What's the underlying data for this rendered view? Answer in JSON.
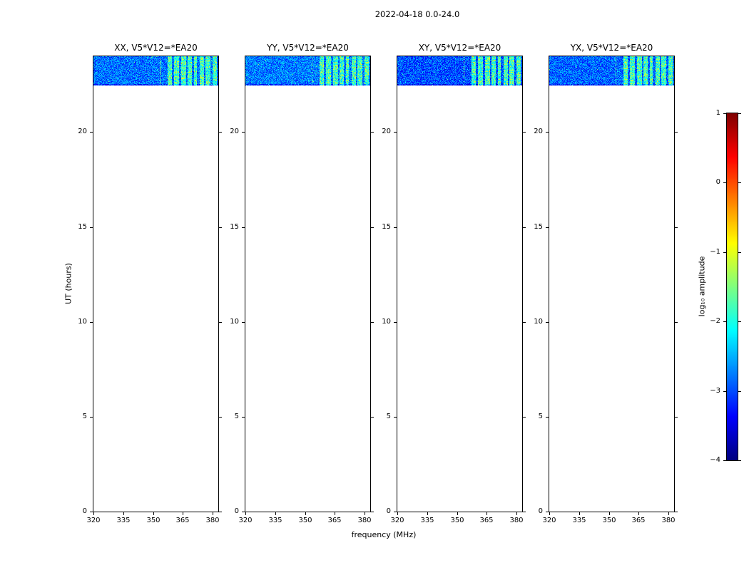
{
  "figure": {
    "title": "2022-04-18 0.0-24.0"
  },
  "chart_data": {
    "type": "heatmap",
    "description": "Four dynamic-spectrum (waterfall) panels of correlation amplitude vs frequency and UT time for polarization products XX, YY, XY, YX of baseline V5*V12=*EA20. Data exist only near the top of each panel (about 22.4 to 24.0 UT) as blue noise around log10 amplitude -3 with bright cyan-green RFI stripes between roughly 357 and 382 MHz; the rest of each panel is empty (white).",
    "xlabel": "frequency (MHz)",
    "ylabel": "UT (hours)",
    "x_ticks": [
      320,
      335,
      350,
      365,
      380
    ],
    "y_ticks": [
      0,
      5,
      10,
      15,
      20
    ],
    "xlim": [
      320,
      382.8
    ],
    "ylim": [
      0,
      24
    ],
    "panels": [
      {
        "label": "XX, V5*V12=*EA20",
        "base_log_amp": -3.3
      },
      {
        "label": "YY, V5*V12=*EA20",
        "base_log_amp": -3.25
      },
      {
        "label": "XY, V5*V12=*EA20",
        "base_log_amp": -3.45
      },
      {
        "label": "YX, V5*V12=*EA20",
        "base_log_amp": -3.35
      }
    ],
    "data_band": {
      "ut_range_hours": [
        22.45,
        24.0
      ],
      "base_noise_log_amp": [
        -3.45,
        -2.5
      ],
      "rfi_stripes_mhz": [
        [
          357.5,
          359.5
        ],
        [
          360.5,
          363
        ],
        [
          364,
          366.5
        ],
        [
          367.5,
          369.5
        ],
        [
          370.5,
          372
        ],
        [
          373.5,
          375.5
        ],
        [
          376.5,
          379
        ],
        [
          379.8,
          382
        ]
      ],
      "rfi_log_amp": [
        -2.5,
        -0.9
      ],
      "faint_line_mhz": 353.5
    },
    "colorbar": {
      "label": "log₁₀ amplitude",
      "tick_values": [
        1,
        0,
        -1,
        -2,
        -3,
        -4
      ],
      "tick_labels": [
        "1",
        "0",
        "−1",
        "−2",
        "−3",
        "−4"
      ],
      "vmin": -4,
      "vmax": 1,
      "colormap": "jet"
    }
  }
}
